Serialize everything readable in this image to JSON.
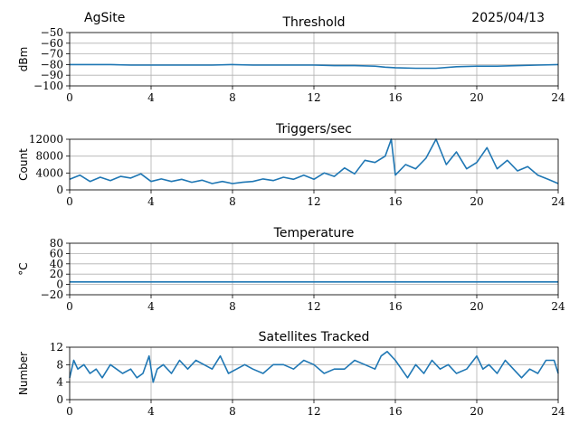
{
  "header": {
    "site": "AgSite",
    "date": "2025/04/13"
  },
  "colors": {
    "line": "#1f77b4",
    "grid": "#b0b0b0",
    "axis": "#000000"
  },
  "chart_data": [
    {
      "type": "line",
      "title": "Threshold",
      "ylabel": "dBm",
      "xlim": [
        0,
        24
      ],
      "ylim": [
        -100,
        -50
      ],
      "xticks": [
        0,
        4,
        8,
        12,
        16,
        20,
        24
      ],
      "yticks": [
        -100,
        -90,
        -80,
        -70,
        -60,
        -50
      ],
      "ytick_labels": [
        "−100",
        "−90",
        "−80",
        "−70",
        "−60",
        "−50"
      ],
      "grid": true,
      "series": [
        {
          "x": [
            0,
            1,
            2,
            3,
            4,
            5,
            6,
            7,
            8,
            9,
            10,
            11,
            12,
            13,
            14,
            15,
            15.5,
            16,
            17,
            18,
            19,
            20,
            21,
            22,
            23,
            24
          ],
          "values": [
            -80,
            -80,
            -80,
            -80.5,
            -80.5,
            -80.5,
            -80.5,
            -80.5,
            -80,
            -80.5,
            -80.5,
            -80.5,
            -80.5,
            -81,
            -81,
            -81.5,
            -82.5,
            -83,
            -83.5,
            -83.5,
            -82,
            -81.5,
            -81.5,
            -81,
            -80.5,
            -80
          ]
        }
      ]
    },
    {
      "type": "line",
      "title": "Triggers/sec",
      "ylabel": "Count",
      "xlim": [
        0,
        24
      ],
      "ylim": [
        0,
        12000
      ],
      "xticks": [
        0,
        4,
        8,
        12,
        16,
        20,
        24
      ],
      "yticks": [
        0,
        4000,
        8000,
        12000
      ],
      "ytick_labels": [
        "0",
        "4000",
        "8000",
        "12000"
      ],
      "grid": true,
      "series": [
        {
          "x": [
            0,
            0.5,
            1,
            1.5,
            2,
            2.5,
            3,
            3.5,
            4,
            4.5,
            5,
            5.5,
            6,
            6.5,
            7,
            7.5,
            8,
            8.5,
            9,
            9.5,
            10,
            10.5,
            11,
            11.5,
            12,
            12.5,
            13,
            13.5,
            14,
            14.5,
            15,
            15.5,
            15.8,
            16,
            16.5,
            17,
            17.5,
            18,
            18.5,
            19,
            19.5,
            20,
            20.5,
            21,
            21.5,
            22,
            22.5,
            23,
            23.5,
            24
          ],
          "values": [
            2500,
            3500,
            2000,
            3000,
            2200,
            3200,
            2800,
            3800,
            2000,
            2600,
            2000,
            2500,
            1800,
            2300,
            1500,
            2000,
            1500,
            1800,
            2000,
            2600,
            2200,
            3000,
            2500,
            3500,
            2500,
            4000,
            3200,
            5200,
            3800,
            7000,
            6500,
            8000,
            12000,
            3500,
            6000,
            5000,
            7500,
            12000,
            6000,
            9000,
            5000,
            6500,
            10000,
            5000,
            7000,
            4500,
            5500,
            3500,
            2500,
            1500
          ]
        }
      ]
    },
    {
      "type": "line",
      "title": "Temperature",
      "ylabel": "°C",
      "xlim": [
        0,
        24
      ],
      "ylim": [
        -20,
        80
      ],
      "xticks": [
        0,
        4,
        8,
        12,
        16,
        20,
        24
      ],
      "yticks": [
        -20,
        0,
        20,
        40,
        60,
        80
      ],
      "ytick_labels": [
        "−20",
        "0",
        "20",
        "40",
        "60",
        "80"
      ],
      "grid": true,
      "series": [
        {
          "x": [
            0,
            24
          ],
          "values": [
            5,
            5
          ]
        }
      ]
    },
    {
      "type": "line",
      "title": "Satellites Tracked",
      "ylabel": "Number",
      "xlim": [
        0,
        24
      ],
      "ylim": [
        0,
        12
      ],
      "xticks": [
        0,
        4,
        8,
        12,
        16,
        20,
        24
      ],
      "yticks": [
        0,
        4,
        8,
        12
      ],
      "ytick_labels": [
        "0",
        "4",
        "8",
        "12"
      ],
      "grid": true,
      "series": [
        {
          "x": [
            0,
            0.2,
            0.4,
            0.7,
            1,
            1.3,
            1.6,
            2,
            2.3,
            2.6,
            3,
            3.3,
            3.6,
            3.9,
            4.1,
            4.3,
            4.6,
            5,
            5.4,
            5.8,
            6.2,
            6.6,
            7,
            7.4,
            7.8,
            8.2,
            8.6,
            9,
            9.5,
            10,
            10.5,
            11,
            11.5,
            12,
            12.5,
            13,
            13.5,
            14,
            14.5,
            15,
            15.3,
            15.6,
            16,
            16.3,
            16.6,
            17,
            17.4,
            17.8,
            18.2,
            18.6,
            19,
            19.5,
            20,
            20.3,
            20.6,
            21,
            21.4,
            21.8,
            22.2,
            22.6,
            23,
            23.4,
            23.8,
            24
          ],
          "values": [
            5,
            9,
            7,
            8,
            6,
            7,
            5,
            8,
            7,
            6,
            7,
            5,
            6,
            10,
            4,
            7,
            8,
            6,
            9,
            7,
            9,
            8,
            7,
            10,
            6,
            7,
            8,
            7,
            6,
            8,
            8,
            7,
            9,
            8,
            6,
            7,
            7,
            9,
            8,
            7,
            10,
            11,
            9,
            7,
            5,
            8,
            6,
            9,
            7,
            8,
            6,
            7,
            10,
            7,
            8,
            6,
            9,
            7,
            5,
            7,
            6,
            9,
            9,
            6
          ]
        }
      ]
    }
  ]
}
